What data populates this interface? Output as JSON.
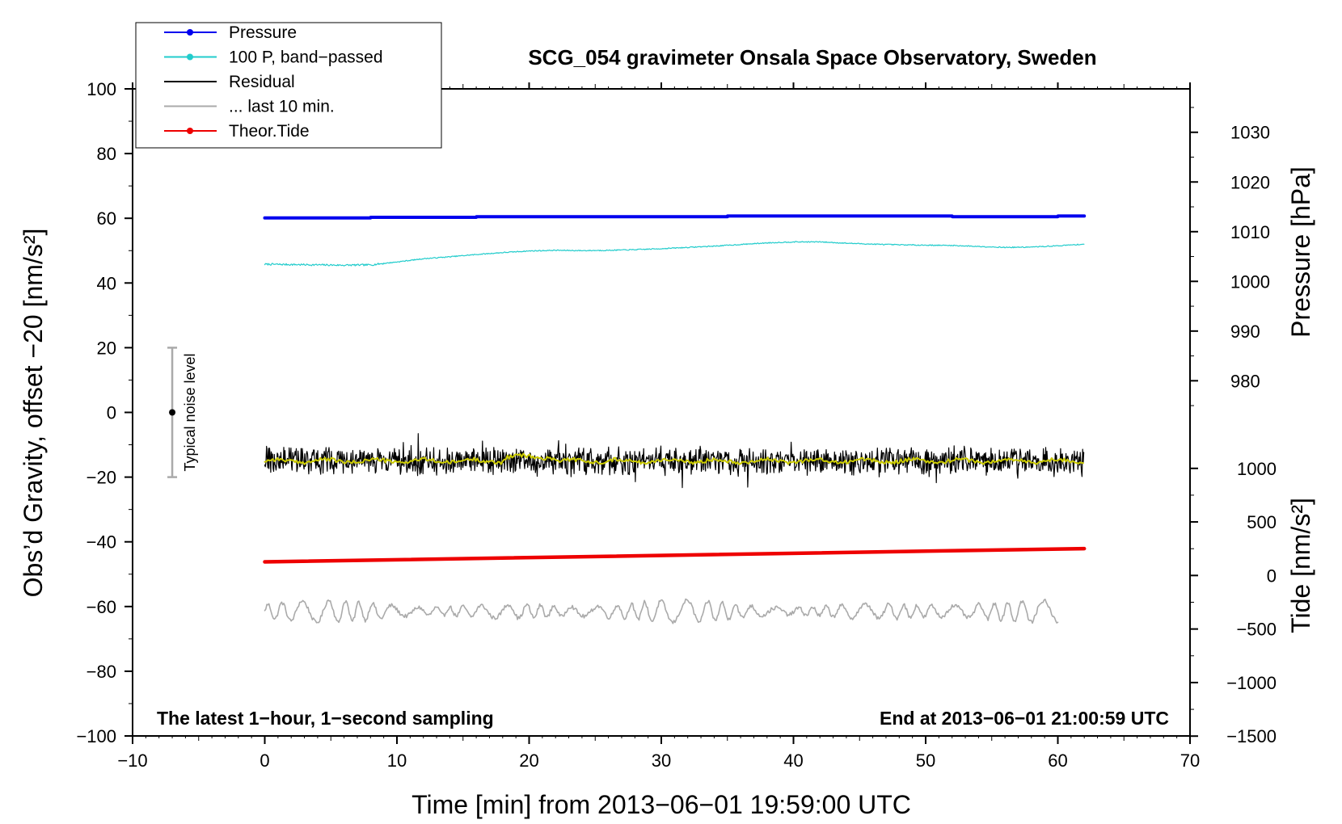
{
  "chart_data": {
    "type": "line",
    "title": "SCG_054 gravimeter Onsala Space Observatory, Sweden",
    "xlabel": "Time [min] from 2013−06−01 19:59:00 UTC",
    "ylabel": "Obs’d Gravity, offset −20 [nm/s²]",
    "ylabel_pressure": "Pressure [hPa]",
    "ylabel_tide": "Tide [nm/s²]",
    "xlim": [
      -10,
      70
    ],
    "ylim": [
      -100,
      100
    ],
    "x_ticks": [
      -10,
      0,
      10,
      20,
      30,
      40,
      50,
      60,
      70
    ],
    "x_tick_labels": [
      "−10",
      "0",
      "10",
      "20",
      "30",
      "40",
      "50",
      "60",
      "70"
    ],
    "y_ticks": [
      -100,
      -80,
      -60,
      -40,
      -20,
      0,
      20,
      40,
      60,
      80,
      100
    ],
    "y_tick_labels": [
      "−100",
      "−80",
      "−60",
      "−40",
      "−20",
      "0",
      "20",
      "40",
      "60",
      "80",
      "100"
    ],
    "pressure_axis": {
      "ticks": [
        980,
        990,
        1000,
        1010,
        1020,
        1030
      ],
      "tick_labels": [
        "980",
        "990",
        "1000",
        "1010",
        "1020",
        "1030"
      ],
      "ref_value": 1000,
      "ref_y": 40.5,
      "scale_per_unit": 1.536
    },
    "tide_axis": {
      "ticks": [
        -1500,
        -1000,
        -500,
        0,
        500,
        1000
      ],
      "tick_labels": [
        "−1500",
        "−1000",
        "−500",
        "0",
        "500",
        "1000"
      ],
      "ref_value": 0,
      "ref_y": -50.4,
      "scale_per_unit": 0.0331
    },
    "legend": {
      "position": "top-left",
      "entries": [
        {
          "label": "Pressure",
          "color": "#0000ee",
          "style": "line-dot"
        },
        {
          "label": "100 P, band−passed",
          "color": "#22cccc",
          "style": "line-dot"
        },
        {
          "label": "Residual",
          "color": "#000000",
          "style": "line"
        },
        {
          "label": "... last 10 min.",
          "color": "#aaaaaa",
          "style": "line"
        },
        {
          "label": "Theor.Tide",
          "color": "#ee0000",
          "style": "line-dot"
        }
      ]
    },
    "series": [
      {
        "name": "Pressure",
        "color": "#0000ee",
        "x": [
          0,
          8,
          8.01,
          16,
          16.01,
          35,
          35.01,
          52,
          52.01,
          60,
          60.01,
          62
        ],
        "y": [
          60.1,
          60.1,
          60.3,
          60.3,
          60.5,
          60.5,
          60.7,
          60.7,
          60.5,
          60.5,
          60.7,
          60.7
        ]
      },
      {
        "name": "100 P, band−passed",
        "color": "#22cccc",
        "x": [
          0,
          2,
          4,
          6,
          8,
          10,
          12,
          14,
          16,
          18,
          20,
          22,
          24,
          26,
          28,
          30,
          32,
          34,
          36,
          38,
          40,
          42,
          44,
          46,
          48,
          50,
          52,
          54,
          56,
          58,
          60,
          62
        ],
        "y": [
          45.8,
          45.7,
          45.6,
          45.5,
          45.6,
          46.5,
          47.5,
          48.1,
          48.8,
          49.4,
          49.9,
          50.1,
          50.0,
          50.1,
          50.3,
          50.6,
          51.0,
          51.4,
          51.9,
          52.4,
          52.7,
          52.7,
          52.3,
          52.0,
          51.8,
          51.7,
          51.6,
          51.3,
          51.0,
          51.1,
          51.5,
          52.0
        ]
      },
      {
        "name": "Residual",
        "color": "#000000",
        "x_start": 0,
        "x_end": 62,
        "mean": -15,
        "amplitude": 4.5
      },
      {
        "name": "Residual (smoothed)",
        "color": "#cccc00",
        "x_start": 0,
        "x_end": 62,
        "mean": -15,
        "amplitude": 1.2
      },
      {
        "name": "... last 10 min.",
        "color": "#aaaaaa",
        "x_start": 0,
        "x_end": 60,
        "mean": -61.5,
        "amplitude": 3.5
      },
      {
        "name": "Theor.Tide",
        "color": "#ee0000",
        "x": [
          0,
          62
        ],
        "y": [
          -46.2,
          -42.1
        ]
      }
    ],
    "noise_bar": {
      "label": "Typical noise level",
      "x": -7,
      "y": 0,
      "y_low": -20,
      "y_high": 20
    },
    "annotations": {
      "bottom_left": "The latest 1−hour, 1−second sampling",
      "bottom_right": "End at 2013−06−01 21:00:59 UTC"
    }
  }
}
